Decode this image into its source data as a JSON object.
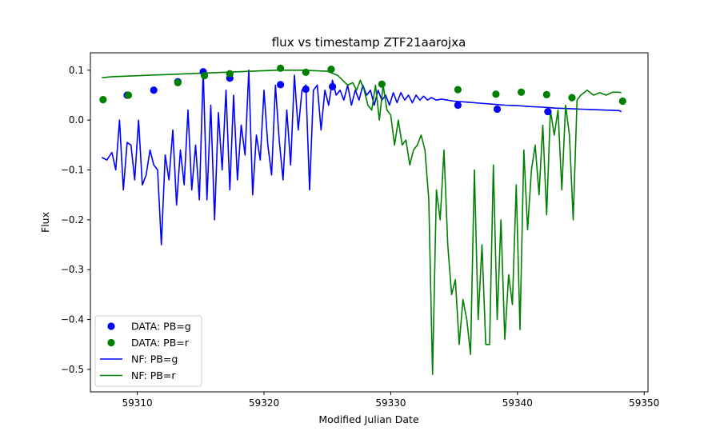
{
  "chart_data": {
    "type": "scatter+line",
    "title": "flux vs timestamp ZTF21aarojxa",
    "xlabel": "Modified Julian Date",
    "ylabel": "Flux",
    "xlim": [
      59306.3,
      59350.3
    ],
    "ylim": [
      -0.545,
      0.135
    ],
    "xticks": [
      59310,
      59320,
      59330,
      59340,
      59350
    ],
    "yticks": [
      0.1,
      0.0,
      -0.1,
      -0.2,
      -0.3,
      -0.4,
      -0.5
    ],
    "legend_position": "lower-left",
    "series": [
      {
        "name": "DATA: PB=g",
        "kind": "scatter",
        "color": "#0000ff",
        "x": [
          59309.2,
          59311.3,
          59313.2,
          59315.2,
          59317.3,
          59321.3,
          59323.3,
          59325.4,
          59335.3,
          59338.4,
          59342.4
        ],
        "y": [
          0.05,
          0.06,
          0.077,
          0.097,
          0.084,
          0.071,
          0.062,
          0.067,
          0.03,
          0.022,
          0.017
        ]
      },
      {
        "name": "DATA: PB=r",
        "kind": "scatter",
        "color": "#008000",
        "x": [
          59307.3,
          59309.3,
          59313.2,
          59315.3,
          59317.3,
          59321.3,
          59323.3,
          59325.3,
          59329.3,
          59335.3,
          59338.3,
          59340.3,
          59342.3,
          59344.3,
          59348.3
        ],
        "y": [
          0.041,
          0.05,
          0.075,
          0.089,
          0.093,
          0.104,
          0.096,
          0.102,
          0.072,
          0.061,
          0.052,
          0.056,
          0.051,
          0.045,
          0.038
        ]
      },
      {
        "name": "NF: PB=g",
        "kind": "line",
        "color": "#0000ff",
        "x": [
          59307.2,
          59307.6,
          59308.0,
          59308.3,
          59308.6,
          59308.9,
          59309.2,
          59309.5,
          59309.8,
          59310.1,
          59310.4,
          59310.7,
          59311.0,
          59311.3,
          59311.6,
          59311.9,
          59312.2,
          59312.5,
          59312.8,
          59313.1,
          59313.4,
          59313.7,
          59314.0,
          59314.3,
          59314.6,
          59314.9,
          59315.2,
          59315.5,
          59315.8,
          59316.1,
          59316.4,
          59316.7,
          59317.0,
          59317.3,
          59317.6,
          59317.9,
          59318.2,
          59318.5,
          59318.8,
          59319.1,
          59319.4,
          59319.7,
          59320.0,
          59320.3,
          59320.6,
          59320.9,
          59321.2,
          59321.5,
          59321.8,
          59322.1,
          59322.4,
          59322.7,
          59323.0,
          59323.3,
          59323.6,
          59323.9,
          59324.2,
          59324.5,
          59324.8,
          59325.1,
          59325.4,
          59325.7,
          59326.0,
          59326.3,
          59326.6,
          59326.9,
          59327.2,
          59327.5,
          59327.8,
          59328.1,
          59328.4,
          59328.7,
          59329.0,
          59329.3,
          59329.6,
          59329.9,
          59330.2,
          59330.5,
          59330.8,
          59331.1,
          59331.4,
          59331.7,
          59332.0,
          59332.3,
          59332.6,
          59332.9,
          59333.2,
          59333.6,
          59334.0,
          59334.5,
          59335.0,
          59336.0,
          59337.0,
          59338.0,
          59339.0,
          59340.0,
          59341.0,
          59342.0,
          59343.0,
          59344.0,
          59345.0,
          59346.0,
          59347.0,
          59348.0,
          59348.2
        ],
        "y": [
          -0.075,
          -0.08,
          -0.065,
          -0.1,
          0.0,
          -0.14,
          -0.045,
          -0.05,
          -0.12,
          0.0,
          -0.13,
          -0.11,
          -0.06,
          -0.09,
          -0.1,
          -0.25,
          -0.07,
          -0.12,
          -0.02,
          -0.17,
          -0.06,
          -0.13,
          0.02,
          -0.14,
          -0.05,
          -0.16,
          0.1,
          -0.16,
          0.03,
          -0.2,
          0.015,
          -0.1,
          0.06,
          -0.14,
          0.05,
          -0.12,
          -0.01,
          -0.07,
          0.1,
          -0.15,
          -0.03,
          -0.08,
          0.06,
          -0.05,
          -0.11,
          0.07,
          -0.04,
          -0.12,
          0.02,
          -0.09,
          0.09,
          -0.02,
          0.06,
          0.07,
          -0.14,
          0.06,
          0.07,
          -0.02,
          0.06,
          0.03,
          0.08,
          0.05,
          0.06,
          0.04,
          0.07,
          0.03,
          0.06,
          0.04,
          0.07,
          0.05,
          0.06,
          0.03,
          0.06,
          0.04,
          0.05,
          0.03,
          0.055,
          0.035,
          0.055,
          0.04,
          0.05,
          0.035,
          0.05,
          0.04,
          0.048,
          0.04,
          0.045,
          0.04,
          0.042,
          0.04,
          0.038,
          0.036,
          0.034,
          0.032,
          0.03,
          0.029,
          0.027,
          0.026,
          0.024,
          0.023,
          0.022,
          0.021,
          0.02,
          0.019,
          0.017
        ]
      },
      {
        "name": "NF: PB=r",
        "kind": "line",
        "color": "#008000",
        "x": [
          59307.2,
          59308.0,
          59309.0,
          59310.0,
          59311.0,
          59312.0,
          59313.0,
          59314.0,
          59315.0,
          59316.0,
          59317.0,
          59318.0,
          59319.0,
          59320.0,
          59321.0,
          59322.0,
          59323.0,
          59324.0,
          59325.0,
          59325.8,
          59326.2,
          59326.6,
          59327.0,
          59327.3,
          59327.6,
          59327.9,
          59328.2,
          59328.5,
          59328.8,
          59329.1,
          59329.4,
          59329.7,
          59330.0,
          59330.3,
          59330.6,
          59330.9,
          59331.2,
          59331.5,
          59331.8,
          59332.1,
          59332.4,
          59332.7,
          59333.0,
          59333.3,
          59333.6,
          59333.9,
          59334.2,
          59334.5,
          59334.8,
          59335.1,
          59335.4,
          59335.7,
          59336.0,
          59336.3,
          59336.6,
          59336.9,
          59337.2,
          59337.5,
          59337.8,
          59338.1,
          59338.4,
          59338.7,
          59339.0,
          59339.3,
          59339.6,
          59339.9,
          59340.2,
          59340.5,
          59340.8,
          59341.1,
          59341.4,
          59341.7,
          59342.0,
          59342.3,
          59342.6,
          59342.9,
          59343.2,
          59343.5,
          59343.8,
          59344.1,
          59344.4,
          59344.7,
          59345.0,
          59345.5,
          59346.0,
          59346.5,
          59347.0,
          59347.5,
          59348.0,
          59348.2
        ],
        "y": [
          0.085,
          0.087,
          0.088,
          0.089,
          0.09,
          0.091,
          0.092,
          0.093,
          0.094,
          0.095,
          0.096,
          0.097,
          0.098,
          0.099,
          0.1,
          0.1,
          0.1,
          0.099,
          0.098,
          0.09,
          0.08,
          0.07,
          0.075,
          0.06,
          0.08,
          0.06,
          0.03,
          0.02,
          0.07,
          0.0,
          0.07,
          0.02,
          0.01,
          -0.05,
          0.0,
          -0.05,
          -0.04,
          -0.09,
          -0.06,
          -0.05,
          -0.03,
          -0.06,
          -0.16,
          -0.51,
          -0.14,
          -0.2,
          -0.06,
          -0.25,
          -0.35,
          -0.32,
          -0.45,
          -0.36,
          -0.4,
          -0.47,
          -0.1,
          -0.4,
          -0.25,
          -0.45,
          -0.45,
          -0.09,
          -0.4,
          -0.2,
          -0.44,
          -0.31,
          -0.37,
          -0.13,
          -0.42,
          -0.06,
          -0.22,
          -0.1,
          -0.05,
          -0.15,
          -0.01,
          -0.19,
          0.02,
          -0.03,
          0.02,
          -0.14,
          0.03,
          -0.03,
          -0.2,
          0.04,
          0.05,
          0.06,
          0.05,
          0.055,
          0.05,
          0.056,
          0.056,
          0.055
        ]
      }
    ]
  }
}
